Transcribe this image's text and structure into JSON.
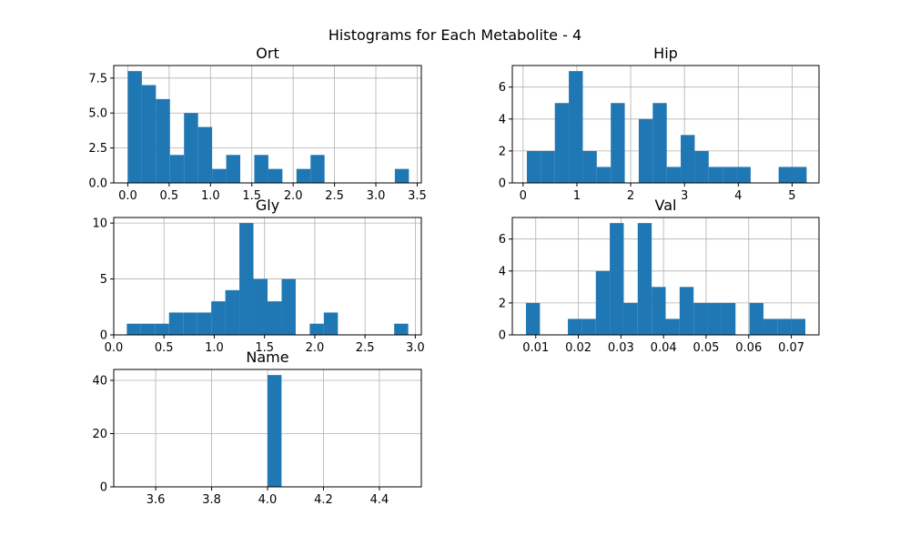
{
  "figure": {
    "title": "Histograms for Each Metabolite - 4",
    "bar_color": "#1f77b4",
    "grid": true,
    "bins": 20
  },
  "chart_data": [
    {
      "type": "bar",
      "title": "Ort",
      "xlim": [
        -0.17,
        3.55
      ],
      "ylim": [
        0,
        8.4
      ],
      "xticks": [
        0.0,
        0.5,
        1.0,
        1.5,
        2.0,
        2.5,
        3.0,
        3.5
      ],
      "xtick_labels": [
        "0.0",
        "0.5",
        "1.0",
        "1.5",
        "2.0",
        "2.5",
        "3.0",
        "3.5"
      ],
      "yticks": [
        0,
        2.5,
        5,
        7.5
      ],
      "ytick_labels": [
        "0.0",
        "2.5",
        "5.0",
        "7.5"
      ],
      "bin_start": 0.0,
      "bin_end": 3.4,
      "counts": [
        8,
        7,
        6,
        2,
        5,
        4,
        1,
        2,
        0,
        2,
        1,
        0,
        1,
        2,
        0,
        0,
        0,
        0,
        0,
        1
      ]
    },
    {
      "type": "bar",
      "title": "Hip",
      "xlim": [
        -0.2,
        5.5
      ],
      "ylim": [
        0,
        7.35
      ],
      "xticks": [
        0,
        1,
        2,
        3,
        4,
        5
      ],
      "xtick_labels": [
        "0",
        "1",
        "2",
        "3",
        "4",
        "5"
      ],
      "yticks": [
        0,
        2,
        4,
        6
      ],
      "ytick_labels": [
        "0",
        "2",
        "4",
        "6"
      ],
      "bin_start": 0.07,
      "bin_end": 5.27,
      "counts": [
        2,
        2,
        5,
        7,
        2,
        1,
        5,
        0,
        4,
        5,
        1,
        3,
        2,
        1,
        1,
        1,
        0,
        0,
        1,
        1
      ]
    },
    {
      "type": "bar",
      "title": "Gly",
      "xlim": [
        0.0,
        3.06
      ],
      "ylim": [
        0,
        10.5
      ],
      "xticks": [
        0.0,
        0.5,
        1.0,
        1.5,
        2.0,
        2.5,
        3.0
      ],
      "xtick_labels": [
        "0.0",
        "0.5",
        "1.0",
        "1.5",
        "2.0",
        "2.5",
        "3.0"
      ],
      "yticks": [
        0,
        5,
        10
      ],
      "ytick_labels": [
        "0",
        "5",
        "10"
      ],
      "bin_start": 0.13,
      "bin_end": 2.93,
      "counts": [
        1,
        1,
        1,
        2,
        2,
        2,
        3,
        4,
        10,
        5,
        3,
        5,
        0,
        1,
        2,
        0,
        0,
        0,
        0,
        1
      ]
    },
    {
      "type": "bar",
      "title": "Val",
      "xlim": [
        0.0045,
        0.0765
      ],
      "ylim": [
        0,
        7.35
      ],
      "xticks": [
        0.01,
        0.02,
        0.03,
        0.04,
        0.05,
        0.06,
        0.07
      ],
      "xtick_labels": [
        "0.01",
        "0.02",
        "0.03",
        "0.04",
        "0.05",
        "0.06",
        "0.07"
      ],
      "yticks": [
        0,
        2,
        4,
        6
      ],
      "ytick_labels": [
        "0",
        "2",
        "4",
        "6"
      ],
      "bin_start": 0.0077,
      "bin_end": 0.0733,
      "counts": [
        2,
        0,
        0,
        1,
        1,
        4,
        7,
        2,
        7,
        3,
        1,
        3,
        2,
        2,
        2,
        0,
        2,
        1,
        1,
        1
      ]
    },
    {
      "type": "bar",
      "title": "Name",
      "xlim": [
        3.45,
        4.55
      ],
      "ylim": [
        0,
        44.1
      ],
      "xticks": [
        3.6,
        3.8,
        4.0,
        4.2,
        4.4
      ],
      "xtick_labels": [
        "3.6",
        "3.8",
        "4.0",
        "4.2",
        "4.4"
      ],
      "yticks": [
        0,
        20,
        40
      ],
      "ytick_labels": [
        "0",
        "20",
        "40"
      ],
      "bin_start": 4.0,
      "bin_end": 4.05,
      "counts": [
        42
      ]
    }
  ]
}
